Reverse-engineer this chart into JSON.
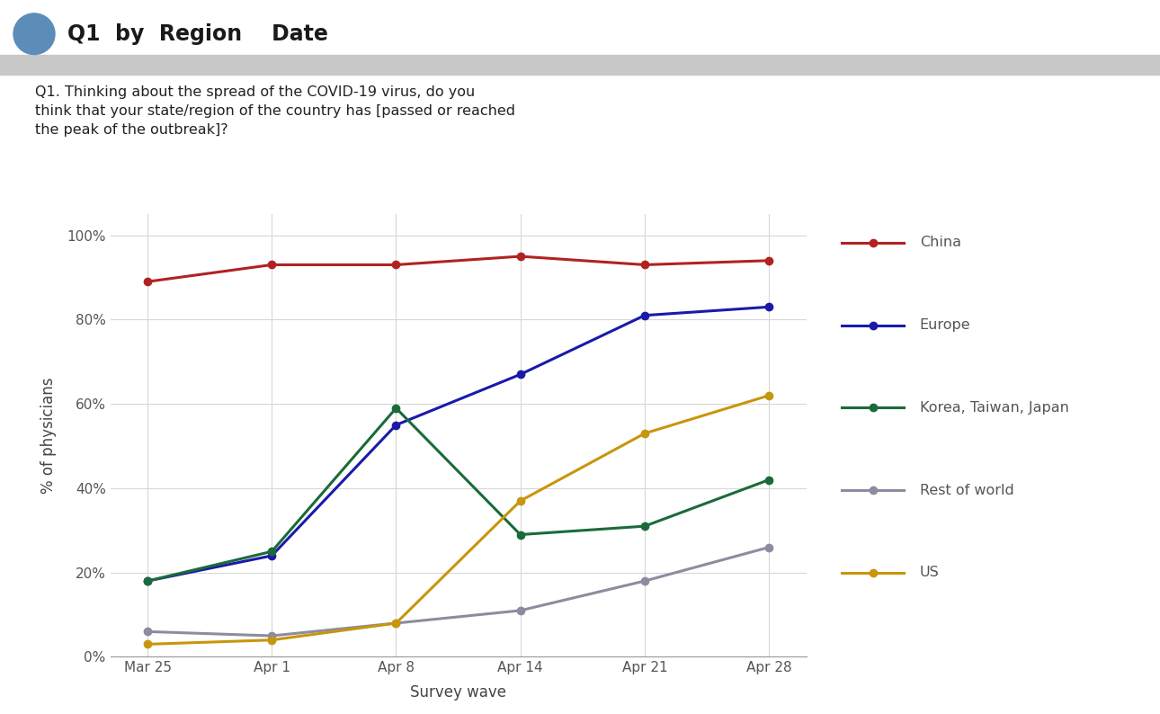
{
  "title_header": "Q1  by  Region    Date",
  "question_text": "Q1. Thinking about the spread of the COVID-19 virus, do you\nthink that your state/region of the country has [passed or reached\nthe peak of the outbreak]?",
  "x_labels": [
    "Mar 25",
    "Apr 1",
    "Apr 8",
    "Apr 14",
    "Apr 21",
    "Apr 28"
  ],
  "xlabel": "Survey wave",
  "ylabel": "% of physicians",
  "series": {
    "China": {
      "color": "#b22222",
      "values": [
        89,
        93,
        93,
        95,
        93,
        94
      ]
    },
    "Europe": {
      "color": "#1a1aaa",
      "values": [
        18,
        24,
        55,
        67,
        81,
        83
      ]
    },
    "Korea, Taiwan, Japan": {
      "color": "#1a6b3a",
      "values": [
        18,
        25,
        59,
        29,
        31,
        42
      ]
    },
    "Rest of world": {
      "color": "#8c8ca0",
      "values": [
        6,
        5,
        8,
        11,
        18,
        26
      ]
    },
    "US": {
      "color": "#c8960c",
      "values": [
        3,
        4,
        8,
        37,
        53,
        62
      ]
    }
  },
  "ylim": [
    0,
    105
  ],
  "yticks": [
    0,
    20,
    40,
    60,
    80,
    100
  ],
  "ytick_labels": [
    "0%",
    "20%",
    "40%",
    "60%",
    "80%",
    "100%"
  ],
  "header_circle_color": "#5b8db8",
  "header_bar_color": "#c8c8c8",
  "background_color": "#ffffff",
  "grid_color": "#d8d8d8"
}
